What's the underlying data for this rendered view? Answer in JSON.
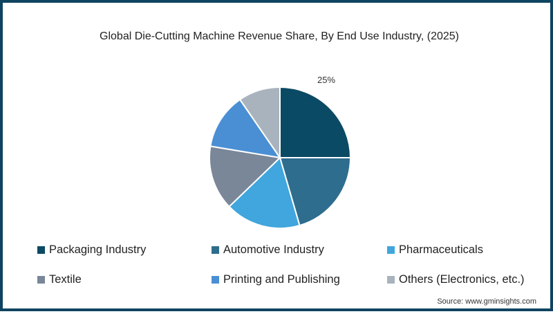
{
  "chart_data": {
    "type": "pie",
    "title": "Global Die-Cutting Machine Revenue Share, By End Use Industry, (2025)",
    "categories": [
      "Packaging Industry",
      "Automotive Industry",
      "Pharmaceuticals",
      "Textile",
      "Printing and Publishing",
      "Others (Electronics, etc.)"
    ],
    "values": [
      25,
      20.5,
      17.3,
      14.8,
      12.8,
      9.6
    ],
    "colors": [
      "#0b4a64",
      "#2e6d8e",
      "#40a6dd",
      "#7a8799",
      "#4a8fd4",
      "#a8b3bd"
    ],
    "data_labels": [
      {
        "category": "Packaging Industry",
        "text": "25%"
      }
    ],
    "legend_position": "bottom",
    "source": "Source: www.gminsights.com"
  },
  "title": "Global Die-Cutting Machine Revenue Share, By End Use Industry, (2025)",
  "label": "25%",
  "legend": [
    {
      "label": "Packaging Industry",
      "color": "#0b4a64"
    },
    {
      "label": "Automotive Industry",
      "color": "#2e6d8e"
    },
    {
      "label": "Pharmaceuticals",
      "color": "#40a6dd"
    },
    {
      "label": "Textile",
      "color": "#7a8799"
    },
    {
      "label": "Printing and Publishing",
      "color": "#4a8fd4"
    },
    {
      "label": "Others (Electronics, etc.)",
      "color": "#a8b3bd"
    }
  ],
  "source": "Source: www.gminsights.com"
}
